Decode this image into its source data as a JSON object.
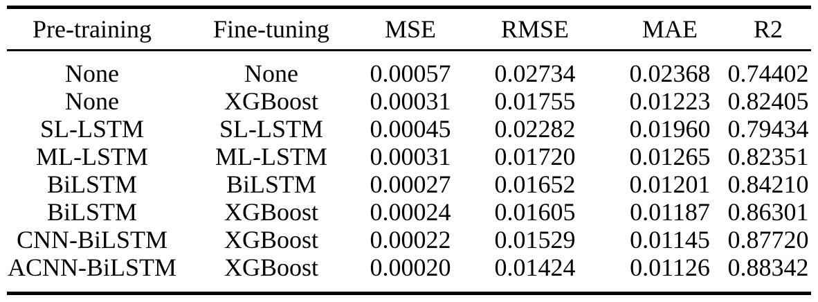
{
  "table": {
    "columns": [
      "Pre-training",
      "Fine-tuning",
      "MSE",
      "RMSE",
      "MAE",
      "R2"
    ],
    "rows": [
      [
        "None",
        "None",
        "0.00057",
        "0.02734",
        "0.02368",
        "0.74402"
      ],
      [
        "None",
        "XGBoost",
        "0.00031",
        "0.01755",
        "0.01223",
        "0.82405"
      ],
      [
        "SL-LSTM",
        "SL-LSTM",
        "0.00045",
        "0.02282",
        "0.01960",
        "0.79434"
      ],
      [
        "ML-LSTM",
        "ML-LSTM",
        "0.00031",
        "0.01720",
        "0.01265",
        "0.82351"
      ],
      [
        "BiLSTM",
        "BiLSTM",
        "0.00027",
        "0.01652",
        "0.01201",
        "0.84210"
      ],
      [
        "BiLSTM",
        "XGBoost",
        "0.00024",
        "0.01605",
        "0.01187",
        "0.86301"
      ],
      [
        "CNN-BiLSTM",
        "XGBoost",
        "0.00022",
        "0.01529",
        "0.01145",
        "0.87720"
      ],
      [
        "ACNN-BiLSTM",
        "XGBoost",
        "0.00020",
        "0.01424",
        "0.01126",
        "0.88342"
      ]
    ]
  },
  "colors": {
    "text": "#000000",
    "rule": "#000000",
    "background": "#ffffff"
  }
}
